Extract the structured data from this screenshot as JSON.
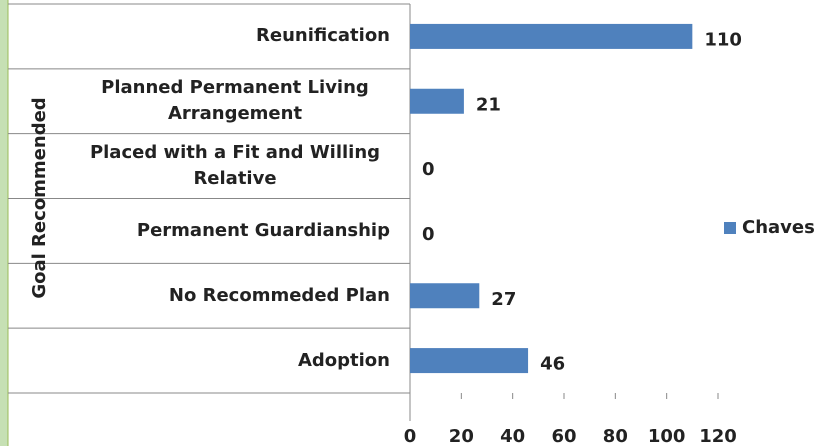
{
  "chart_data": {
    "type": "bar",
    "orientation": "horizontal",
    "y_axis_label": "Goal Recommended",
    "categories": [
      "Reunification",
      "Planned Permanent Living Arrangement",
      "Placed with a Fit and Willing Relative",
      "Permanent Guardianship",
      "No Recommeded Plan",
      "Adoption"
    ],
    "series": [
      {
        "name": "Chaves",
        "color": "#4f81bd",
        "values": [
          110,
          21,
          0,
          0,
          27,
          46
        ]
      }
    ],
    "xlim": [
      0,
      120
    ],
    "xticks": [
      0,
      20,
      40,
      60,
      80,
      100,
      120
    ],
    "legend": "right"
  }
}
